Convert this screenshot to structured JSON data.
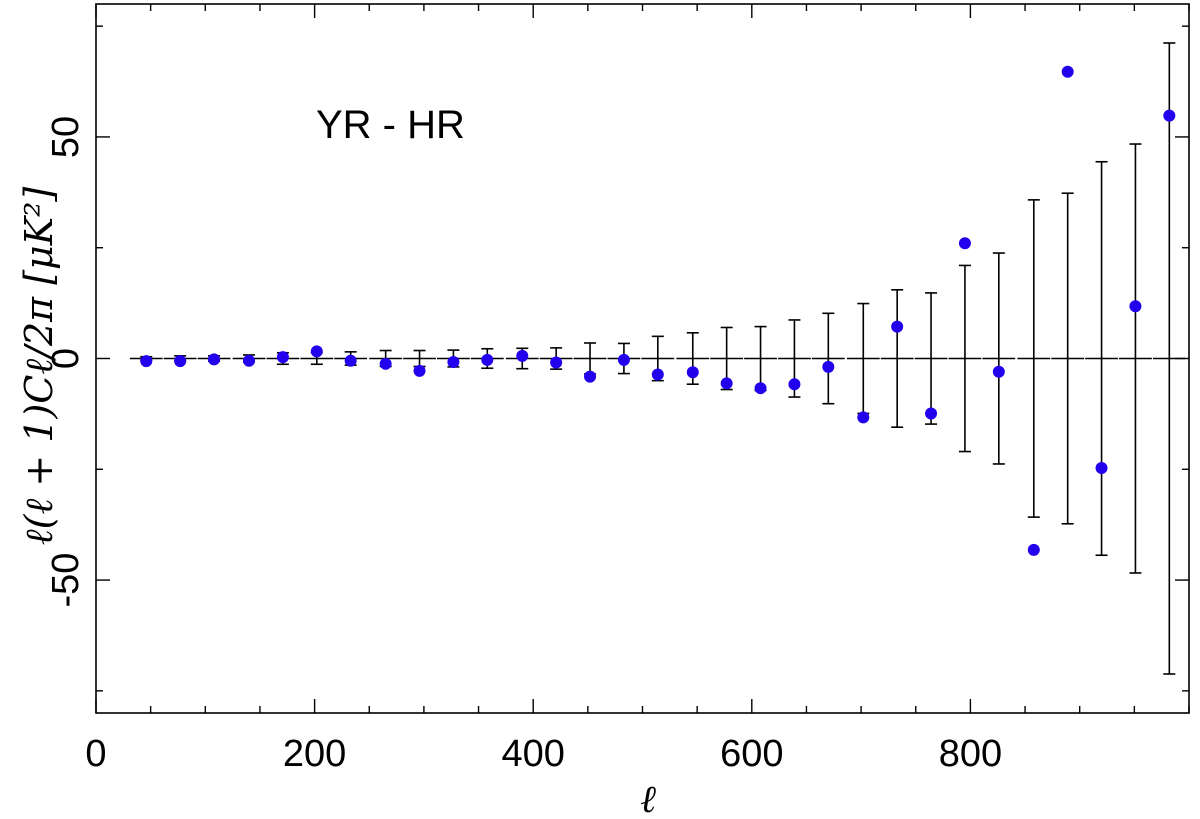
{
  "chart_data": {
    "type": "scatter",
    "xlabel": "ℓ",
    "ylabel": "ℓ(ℓ + 1)Cℓ/2π   [μK²]",
    "annotation": "YR - HR",
    "xlim": [
      0,
      1000
    ],
    "ylim": [
      -80,
      80
    ],
    "xticks_major": [
      0,
      200,
      400,
      600,
      800
    ],
    "xticks_minor_step": 50,
    "yticks_major": [
      -50,
      0,
      50
    ],
    "yticks_minor_step": 25,
    "grid": false,
    "legend": "none",
    "bin_halfwidth": 15,
    "marker_color": "#2200ee",
    "errorbar_color": "#000000",
    "x": [
      46,
      77,
      108,
      140,
      171,
      202,
      233,
      265,
      296,
      327,
      358,
      390,
      421,
      452,
      483,
      514,
      546,
      577,
      608,
      639,
      670,
      702,
      733,
      764,
      795,
      826,
      858,
      889,
      920,
      951,
      982
    ],
    "y": [
      -0.6,
      -0.6,
      -0.2,
      -0.5,
      0.3,
      1.6,
      -0.5,
      -1.2,
      -2.8,
      -0.8,
      -0.3,
      0.6,
      -0.9,
      -4.1,
      -0.3,
      -3.6,
      -3.1,
      -5.6,
      -6.7,
      -5.8,
      -1.9,
      -13.3,
      7.2,
      -12.4,
      26.0,
      -3.0,
      -43.2,
      64.7,
      -24.7,
      11.8,
      54.8
    ],
    "error": [
      0.4,
      0.6,
      0.6,
      0.8,
      1.3,
      1.3,
      1.5,
      1.8,
      1.8,
      1.9,
      2.2,
      2.3,
      2.4,
      3.5,
      3.4,
      5.0,
      5.8,
      7.0,
      7.2,
      8.7,
      10.2,
      12.4,
      15.5,
      14.8,
      21.0,
      23.8,
      35.8,
      37.3,
      44.4,
      48.4,
      71.2
    ]
  }
}
